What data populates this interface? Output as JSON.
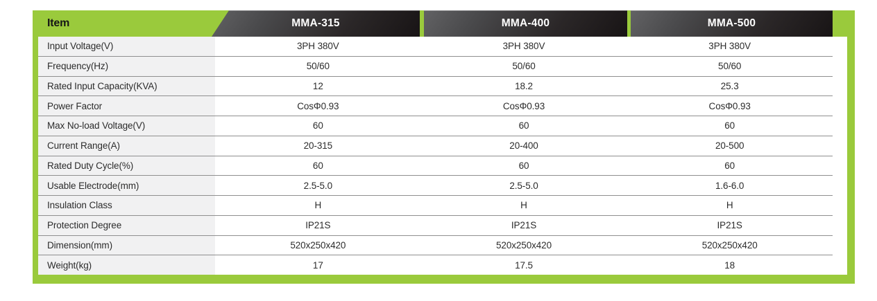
{
  "colors": {
    "accent_green": "#9aca3c",
    "header_gradient_from": "#5b5b5d",
    "header_gradient_to": "#1d191a",
    "label_column_bg": "#f1f1f2",
    "row_divider": "#8f8f8f",
    "header_text": "#ffffff",
    "body_text": "#2c2c2c"
  },
  "table": {
    "item_header": "Item",
    "columns": [
      "MMA-315",
      "MMA-400",
      "MMA-500"
    ],
    "rows": [
      {
        "label": "Input Voltage(V)",
        "values": [
          "3PH 380V",
          "3PH 380V",
          "3PH 380V"
        ]
      },
      {
        "label": "Frequency(Hz)",
        "values": [
          "50/60",
          "50/60",
          "50/60"
        ]
      },
      {
        "label": "Rated Input Capacity(KVA)",
        "values": [
          "12",
          "18.2",
          "25.3"
        ]
      },
      {
        "label": "Power Factor",
        "values": [
          "CosΦ0.93",
          "CosΦ0.93",
          "CosΦ0.93"
        ]
      },
      {
        "label": "Max No-load Voltage(V)",
        "values": [
          "60",
          "60",
          "60"
        ]
      },
      {
        "label": "Current Range(A)",
        "values": [
          "20-315",
          "20-400",
          "20-500"
        ]
      },
      {
        "label": "Rated Duty Cycle(%)",
        "values": [
          "60",
          "60",
          "60"
        ]
      },
      {
        "label": "Usable Electrode(mm)",
        "values": [
          "2.5-5.0",
          "2.5-5.0",
          "1.6-6.0"
        ]
      },
      {
        "label": "Insulation Class",
        "values": [
          "H",
          "H",
          "H"
        ]
      },
      {
        "label": "Protection Degree",
        "values": [
          "IP21S",
          "IP21S",
          "IP21S"
        ]
      },
      {
        "label": "Dimension(mm)",
        "values": [
          "520x250x420",
          "520x250x420",
          "520x250x420"
        ]
      },
      {
        "label": "Weight(kg)",
        "values": [
          "17",
          "17.5",
          "18"
        ]
      }
    ]
  }
}
